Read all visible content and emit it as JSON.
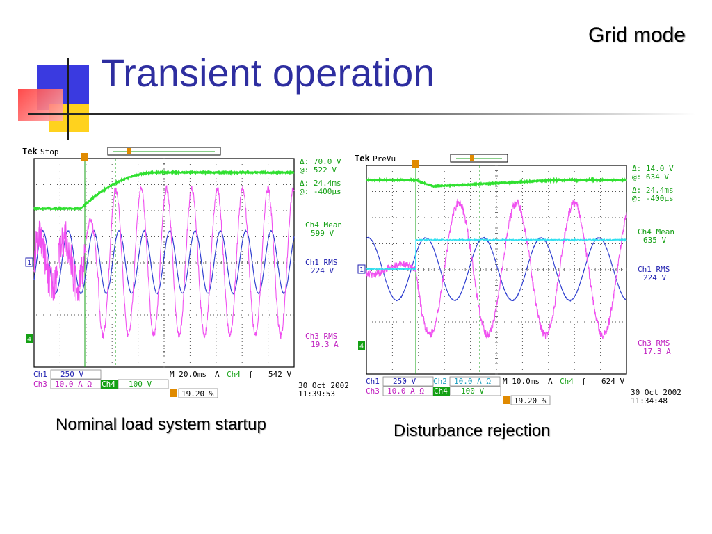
{
  "slide": {
    "title": "Transient operation",
    "corner_label": "Grid mode",
    "colors": {
      "title": "#2e2ea0",
      "deco_blue": "#3a3ae0",
      "deco_red": "#ff2a2a",
      "deco_yellow": "#ffd21e"
    }
  },
  "scopes": [
    {
      "caption": "Nominal load system startup",
      "brand": "Tek",
      "mode": "Stop",
      "readouts": [
        {
          "text": "Δ:    70.0 V",
          "color": "#14a014"
        },
        {
          "text": "@:    522 V",
          "color": "#14a014"
        },
        {
          "text": "Δ:   24.4ms",
          "color": "#14a014"
        },
        {
          "text": "@:   -400µs",
          "color": "#14a014"
        }
      ],
      "measurements": [
        {
          "label": "Ch4 Mean",
          "value": "599 V",
          "color": "#14a014"
        },
        {
          "label": "Ch1 RMS",
          "value": "224 V",
          "color": "#2020b0"
        },
        {
          "label": "Ch3 RMS",
          "value": "19.3 A",
          "color": "#c020c0"
        }
      ],
      "bottom": {
        "ch1_label": "Ch1",
        "ch1_scale": "250 V",
        "ch3_label": "Ch3",
        "ch3_scale": "10.0 A Ω",
        "ch4_label": "Ch4",
        "ch4_scale": "100 V",
        "timebase": "M 20.0ms",
        "trigger_mode": "A",
        "trigger_src": "Ch4",
        "trigger_slope": "ʃ",
        "trigger_level": "542 V",
        "trigger_pos": "19.20 %",
        "date": "30 Oct  2002",
        "time": "11:39:53"
      }
    },
    {
      "caption": "Disturbance rejection",
      "brand": "Tek",
      "mode": "PreVu",
      "readouts": [
        {
          "text": "Δ:    14.0 V",
          "color": "#14a014"
        },
        {
          "text": "@:    634 V",
          "color": "#14a014"
        },
        {
          "text": "Δ:   24.4ms",
          "color": "#14a014"
        },
        {
          "text": "@:   -400µs",
          "color": "#14a014"
        }
      ],
      "measurements": [
        {
          "label": "Ch4 Mean",
          "value": "635 V",
          "color": "#14a014"
        },
        {
          "label": "Ch1 RMS",
          "value": "224 V",
          "color": "#2020b0"
        },
        {
          "label": "Ch3 RMS",
          "value": "17.3 A",
          "color": "#c020c0"
        }
      ],
      "bottom": {
        "ch1_label": "Ch1",
        "ch1_scale": "250 V",
        "ch2_label": "Ch2",
        "ch2_scale": "10.0 A Ω",
        "ch3_label": "Ch3",
        "ch3_scale": "10.0 A Ω",
        "ch4_label": "Ch4",
        "ch4_scale": "100 V",
        "timebase": "M 10.0ms",
        "trigger_mode": "A",
        "trigger_src": "Ch4",
        "trigger_slope": "ʃ",
        "trigger_level": "624 V",
        "trigger_pos": "19.20 %",
        "date": "30 Oct  2002",
        "time": "11:34:48"
      }
    }
  ]
}
